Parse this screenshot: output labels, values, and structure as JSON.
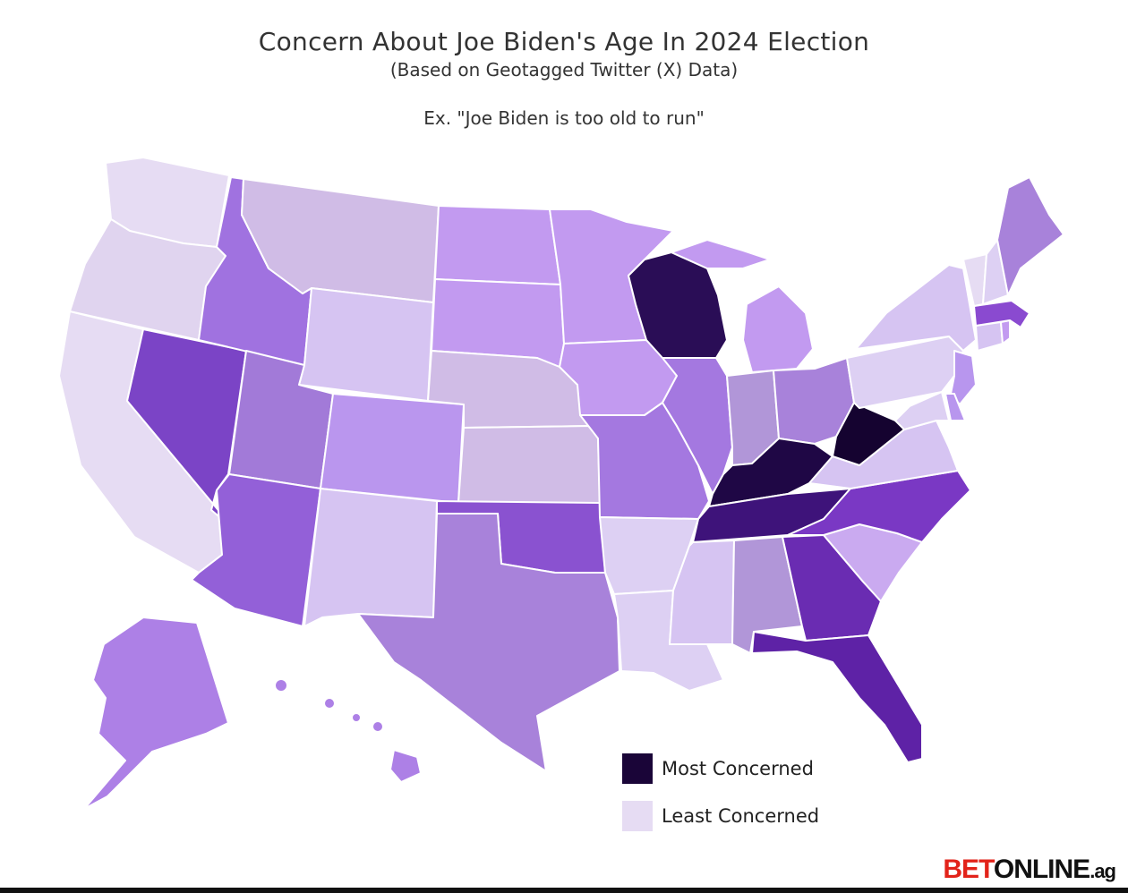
{
  "title": "Concern About Joe Biden's Age In 2024 Election",
  "subtitle": "(Based on Geotagged Twitter (X) Data)",
  "example": "Ex. \"Joe Biden is too old to run\"",
  "legend": [
    {
      "label": "Most Concerned",
      "color": "#1a0538"
    },
    {
      "label": "Least Concerned",
      "color": "#e6dcf3"
    }
  ],
  "logo": {
    "bet": "BET",
    "online": "ONLINE",
    "ag": ".ag"
  },
  "state_colors": {
    "WA": "#e6dcf3",
    "OR": "#e0d4ef",
    "CA": "#e6dcf3",
    "NV": "#7b44c6",
    "ID": "#a072e0",
    "MT": "#d0bce6",
    "WY": "#d6c4f2",
    "UT": "#a27ad8",
    "AZ": "#9360d8",
    "CO": "#ba96ee",
    "NM": "#d6c4f2",
    "ND": "#c29af0",
    "SD": "#c29af0",
    "NE": "#d0bce6",
    "KS": "#d0bce6",
    "OK": "#8a52d0",
    "TX": "#a882da",
    "MN": "#c29af0",
    "IA": "#c29af0",
    "MO": "#a478e0",
    "AR": "#ddd0f3",
    "LA": "#ddd0f3",
    "WI": "#2a0d56",
    "IL": "#a478e0",
    "MI": "#c29af0",
    "IN": "#b196d8",
    "OH": "#a882da",
    "KY": "#1f0745",
    "TN": "#3e137a",
    "MS": "#d6c4f2",
    "AL": "#b196d8",
    "GA": "#6a2cb2",
    "FL": "#5e22a6",
    "SC": "#caaaf0",
    "NC": "#7a38c4",
    "VA": "#d6c4f2",
    "WV": "#150330",
    "PA": "#ddd0f3",
    "NY": "#d6c4f2",
    "VT": "#e6dcf3",
    "NH": "#ddd0f3",
    "ME": "#a882da",
    "MA": "#8a4ad0",
    "RI": "#c29af0",
    "CT": "#d6c4f2",
    "NJ": "#b896ee",
    "DE": "#b896ee",
    "MD": "#ddd0f3",
    "AK": "#ad80e6",
    "HI": "#ad80e6"
  }
}
